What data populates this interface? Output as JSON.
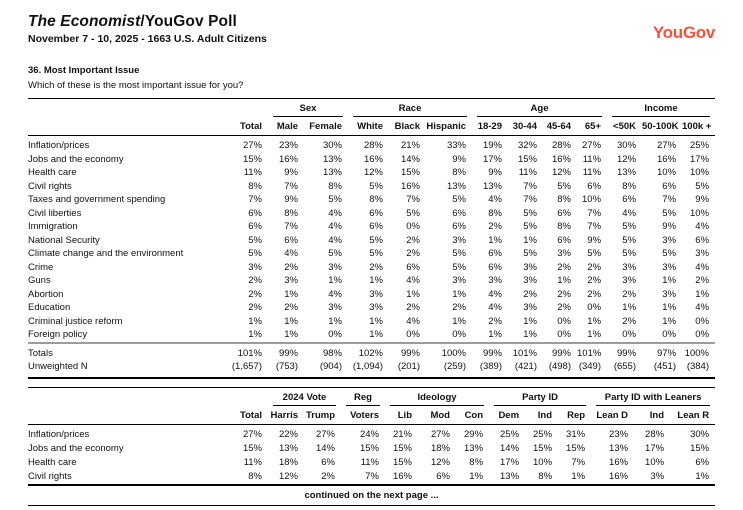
{
  "header": {
    "title_italic": "The Economist",
    "title_rest": "/YouGov Poll",
    "subtitle": "November 7 - 10, 2025 - 1663 U.S. Adult Citizens",
    "logo": "YouGov",
    "logo_color": "#F9523B"
  },
  "question": {
    "number_title": "36. Most Important Issue",
    "text": "Which of these is the most important issue for you?"
  },
  "footer": {
    "continued": "continued on the next page ..."
  },
  "tables": [
    {
      "groups": [
        {
          "label": "",
          "span": 1
        },
        {
          "label": "Sex",
          "span": 2
        },
        {
          "label": "Race",
          "span": 3
        },
        {
          "label": "Age",
          "span": 4
        },
        {
          "label": "Income",
          "span": 3
        }
      ],
      "columns": [
        "Total",
        "Male",
        "Female",
        "White",
        "Black",
        "Hispanic",
        "18-29",
        "30-44",
        "45-64",
        "65+",
        "<50K",
        "50-100K",
        "100k +"
      ],
      "rows": [
        {
          "label": "Inflation/prices",
          "values": [
            "27%",
            "23%",
            "30%",
            "28%",
            "21%",
            "33%",
            "19%",
            "32%",
            "28%",
            "27%",
            "30%",
            "27%",
            "25%"
          ]
        },
        {
          "label": "Jobs and the economy",
          "values": [
            "15%",
            "16%",
            "13%",
            "16%",
            "14%",
            "9%",
            "17%",
            "15%",
            "16%",
            "11%",
            "12%",
            "16%",
            "17%"
          ]
        },
        {
          "label": "Health care",
          "values": [
            "11%",
            "9%",
            "13%",
            "12%",
            "15%",
            "8%",
            "9%",
            "11%",
            "12%",
            "11%",
            "13%",
            "10%",
            "10%"
          ]
        },
        {
          "label": "Civil rights",
          "values": [
            "8%",
            "7%",
            "8%",
            "5%",
            "16%",
            "13%",
            "13%",
            "7%",
            "5%",
            "6%",
            "8%",
            "6%",
            "5%"
          ]
        },
        {
          "label": "Taxes and government spending",
          "values": [
            "7%",
            "9%",
            "5%",
            "8%",
            "7%",
            "5%",
            "4%",
            "7%",
            "8%",
            "10%",
            "6%",
            "7%",
            "9%"
          ]
        },
        {
          "label": "Civil liberties",
          "values": [
            "6%",
            "8%",
            "4%",
            "6%",
            "5%",
            "6%",
            "8%",
            "5%",
            "6%",
            "7%",
            "4%",
            "5%",
            "10%"
          ]
        },
        {
          "label": "Immigration",
          "values": [
            "6%",
            "7%",
            "4%",
            "6%",
            "0%",
            "6%",
            "2%",
            "5%",
            "8%",
            "7%",
            "5%",
            "9%",
            "4%"
          ]
        },
        {
          "label": "National Security",
          "values": [
            "5%",
            "6%",
            "4%",
            "5%",
            "2%",
            "3%",
            "1%",
            "1%",
            "6%",
            "9%",
            "5%",
            "3%",
            "6%"
          ]
        },
        {
          "label": "Climate change and the environment",
          "values": [
            "5%",
            "4%",
            "5%",
            "5%",
            "2%",
            "5%",
            "6%",
            "5%",
            "3%",
            "5%",
            "5%",
            "5%",
            "3%"
          ]
        },
        {
          "label": "Crime",
          "values": [
            "3%",
            "2%",
            "3%",
            "2%",
            "6%",
            "5%",
            "6%",
            "3%",
            "2%",
            "2%",
            "3%",
            "3%",
            "4%"
          ]
        },
        {
          "label": "Guns",
          "values": [
            "2%",
            "3%",
            "1%",
            "1%",
            "4%",
            "3%",
            "3%",
            "3%",
            "1%",
            "2%",
            "3%",
            "1%",
            "2%"
          ]
        },
        {
          "label": "Abortion",
          "values": [
            "2%",
            "1%",
            "4%",
            "3%",
            "1%",
            "1%",
            "4%",
            "2%",
            "2%",
            "2%",
            "2%",
            "3%",
            "1%"
          ]
        },
        {
          "label": "Education",
          "values": [
            "2%",
            "2%",
            "3%",
            "3%",
            "2%",
            "2%",
            "4%",
            "3%",
            "2%",
            "0%",
            "1%",
            "1%",
            "4%"
          ]
        },
        {
          "label": "Criminal justice reform",
          "values": [
            "1%",
            "1%",
            "1%",
            "1%",
            "4%",
            "1%",
            "2%",
            "1%",
            "0%",
            "1%",
            "2%",
            "1%",
            "0%"
          ]
        },
        {
          "label": "Foreign policy",
          "values": [
            "1%",
            "1%",
            "0%",
            "1%",
            "0%",
            "0%",
            "1%",
            "1%",
            "0%",
            "1%",
            "0%",
            "0%",
            "0%"
          ]
        }
      ],
      "summary_rows": [
        {
          "label": "Totals",
          "values": [
            "101%",
            "99%",
            "98%",
            "102%",
            "99%",
            "100%",
            "99%",
            "101%",
            "99%",
            "101%",
            "99%",
            "97%",
            "100%"
          ]
        },
        {
          "label": "Unweighted N",
          "values": [
            "(1,657)",
            "(753)",
            "(904)",
            "(1,094)",
            "(201)",
            "(259)",
            "(389)",
            "(421)",
            "(498)",
            "(349)",
            "(655)",
            "(451)",
            "(384)"
          ]
        }
      ]
    },
    {
      "groups": [
        {
          "label": "",
          "span": 1
        },
        {
          "label": "2024 Vote",
          "span": 2
        },
        {
          "label": "Reg",
          "span": 1
        },
        {
          "label": "Ideology",
          "span": 3
        },
        {
          "label": "Party ID",
          "span": 3
        },
        {
          "label": "Party ID with Leaners",
          "span": 3
        }
      ],
      "columns": [
        "Total",
        "Harris",
        "Trump",
        "Voters",
        "Lib",
        "Mod",
        "Con",
        "Dem",
        "Ind",
        "Rep",
        "Lean D",
        "Ind",
        "Lean R"
      ],
      "rows": [
        {
          "label": "Inflation/prices",
          "values": [
            "27%",
            "22%",
            "27%",
            "24%",
            "21%",
            "27%",
            "29%",
            "25%",
            "25%",
            "31%",
            "23%",
            "28%",
            "30%"
          ]
        },
        {
          "label": "Jobs and the economy",
          "values": [
            "15%",
            "13%",
            "14%",
            "15%",
            "15%",
            "18%",
            "13%",
            "14%",
            "15%",
            "15%",
            "13%",
            "17%",
            "15%"
          ]
        },
        {
          "label": "Health care",
          "values": [
            "11%",
            "18%",
            "6%",
            "11%",
            "15%",
            "12%",
            "8%",
            "17%",
            "10%",
            "7%",
            "16%",
            "10%",
            "6%"
          ]
        },
        {
          "label": "Civil rights",
          "values": [
            "8%",
            "12%",
            "2%",
            "7%",
            "16%",
            "6%",
            "1%",
            "13%",
            "8%",
            "1%",
            "16%",
            "3%",
            "1%"
          ]
        }
      ],
      "summary_rows": []
    }
  ]
}
